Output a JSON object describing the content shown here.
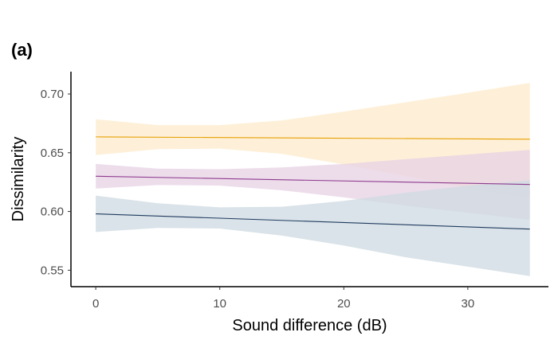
{
  "panel_label": "(a)",
  "chart_data": {
    "type": "line",
    "title": "",
    "xlabel": "Sound difference (dB)",
    "ylabel": "Dissimilarity",
    "xlim": [
      -2,
      36.5
    ],
    "ylim": [
      0.536,
      0.719
    ],
    "xticks": [
      0,
      10,
      20,
      30
    ],
    "yticks": [
      0.55,
      0.6,
      0.65,
      0.7
    ],
    "xtick_labels": [
      "0",
      "10",
      "20",
      "30"
    ],
    "ytick_labels": [
      "0.55",
      "0.60",
      "0.65",
      "0.70"
    ],
    "grid": false,
    "legend": "none",
    "series": [
      {
        "color": "#E69F00",
        "fill": "#FDEBCB",
        "line": [
          [
            0,
            0.6635
          ],
          [
            35,
            0.6615
          ]
        ],
        "ribbon_x": [
          0,
          5,
          10,
          15,
          20,
          25,
          30,
          35
        ],
        "ribbon_upper": [
          0.6785,
          0.6735,
          0.6735,
          0.6775,
          0.685,
          0.693,
          0.701,
          0.7095
        ],
        "ribbon_lower": [
          0.648,
          0.653,
          0.6535,
          0.649,
          0.64,
          0.63,
          0.62,
          0.612
        ]
      },
      {
        "color": "#8E3A8E",
        "fill": "#E7D2E4",
        "line": [
          [
            0,
            0.63
          ],
          [
            35,
            0.623
          ]
        ],
        "ribbon_x": [
          0,
          5,
          10,
          15,
          20,
          25,
          30,
          35
        ],
        "ribbon_upper": [
          0.6405,
          0.6365,
          0.636,
          0.6375,
          0.6405,
          0.6445,
          0.6485,
          0.6525
        ],
        "ribbon_lower": [
          0.6195,
          0.6225,
          0.622,
          0.618,
          0.612,
          0.605,
          0.599,
          0.593
        ]
      },
      {
        "color": "#1F3A5F",
        "fill": "#CED9E1",
        "line": [
          [
            0,
            0.598
          ],
          [
            35,
            0.585
          ]
        ],
        "ribbon_x": [
          0,
          5,
          10,
          15,
          20,
          25,
          30,
          35
        ],
        "ribbon_upper": [
          0.6135,
          0.607,
          0.6035,
          0.604,
          0.609,
          0.616,
          0.622,
          0.6265
        ],
        "ribbon_lower": [
          0.5825,
          0.586,
          0.5855,
          0.5795,
          0.571,
          0.561,
          0.553,
          0.545
        ]
      }
    ]
  }
}
